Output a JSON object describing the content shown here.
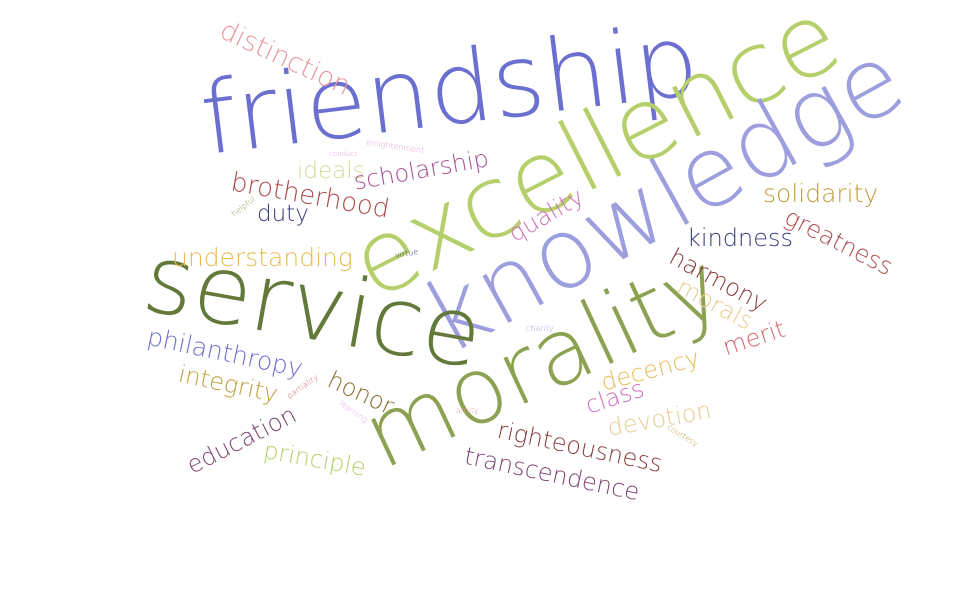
{
  "words": [
    {
      "text": "friendship",
      "color": "#6b6fcf"
    },
    {
      "text": "excellence",
      "color": "#b5cf6b"
    },
    {
      "text": "knowledge",
      "color": "#9c9ede"
    },
    {
      "text": "service",
      "color": "#637939"
    },
    {
      "text": "morality",
      "color": "#8ca252"
    },
    {
      "text": "distinction",
      "color": "#e7969c"
    },
    {
      "text": "enlightenment",
      "color": "#de9ed6"
    },
    {
      "text": "conduct",
      "color": "#de9ed6"
    },
    {
      "text": "ideals",
      "color": "#cedb9c"
    },
    {
      "text": "scholarship",
      "color": "#a55194"
    },
    {
      "text": "brotherhood",
      "color": "#ad494a"
    },
    {
      "text": "helpful",
      "color": "#8ca252"
    },
    {
      "text": "duty",
      "color": "#393b79"
    },
    {
      "text": "quality",
      "color": "#ce6dbd"
    },
    {
      "text": "solidarity",
      "color": "#bd9e39"
    },
    {
      "text": "greatness",
      "color": "#ad494a"
    },
    {
      "text": "kindness",
      "color": "#393b79"
    },
    {
      "text": "understanding",
      "color": "#e7ba52"
    },
    {
      "text": "virtue",
      "color": "#393b79"
    },
    {
      "text": "harmony",
      "color": "#843c39"
    },
    {
      "text": "morals",
      "color": "#e7cb94"
    },
    {
      "text": "merit",
      "color": "#d6616b"
    },
    {
      "text": "charity",
      "color": "#9c9ede"
    },
    {
      "text": "philanthropy",
      "color": "#6b6ecf"
    },
    {
      "text": "decency",
      "color": "#e7ba52"
    },
    {
      "text": "integrity",
      "color": "#bd9e39"
    },
    {
      "text": "partiality",
      "color": "#d6616b"
    },
    {
      "text": "honor",
      "color": "#8c6d31"
    },
    {
      "text": "class",
      "color": "#ce6dbd"
    },
    {
      "text": "devotion",
      "color": "#e7cb94"
    },
    {
      "text": "learning",
      "color": "#de9ed6"
    },
    {
      "text": "amity",
      "color": "#e7969c"
    },
    {
      "text": "courtesy",
      "color": "#bd9e39"
    },
    {
      "text": "education",
      "color": "#7b4173"
    },
    {
      "text": "righteousness",
      "color": "#843c39"
    },
    {
      "text": "principle",
      "color": "#b5cf6b"
    },
    {
      "text": "transcendence",
      "color": "#7b4173"
    }
  ]
}
